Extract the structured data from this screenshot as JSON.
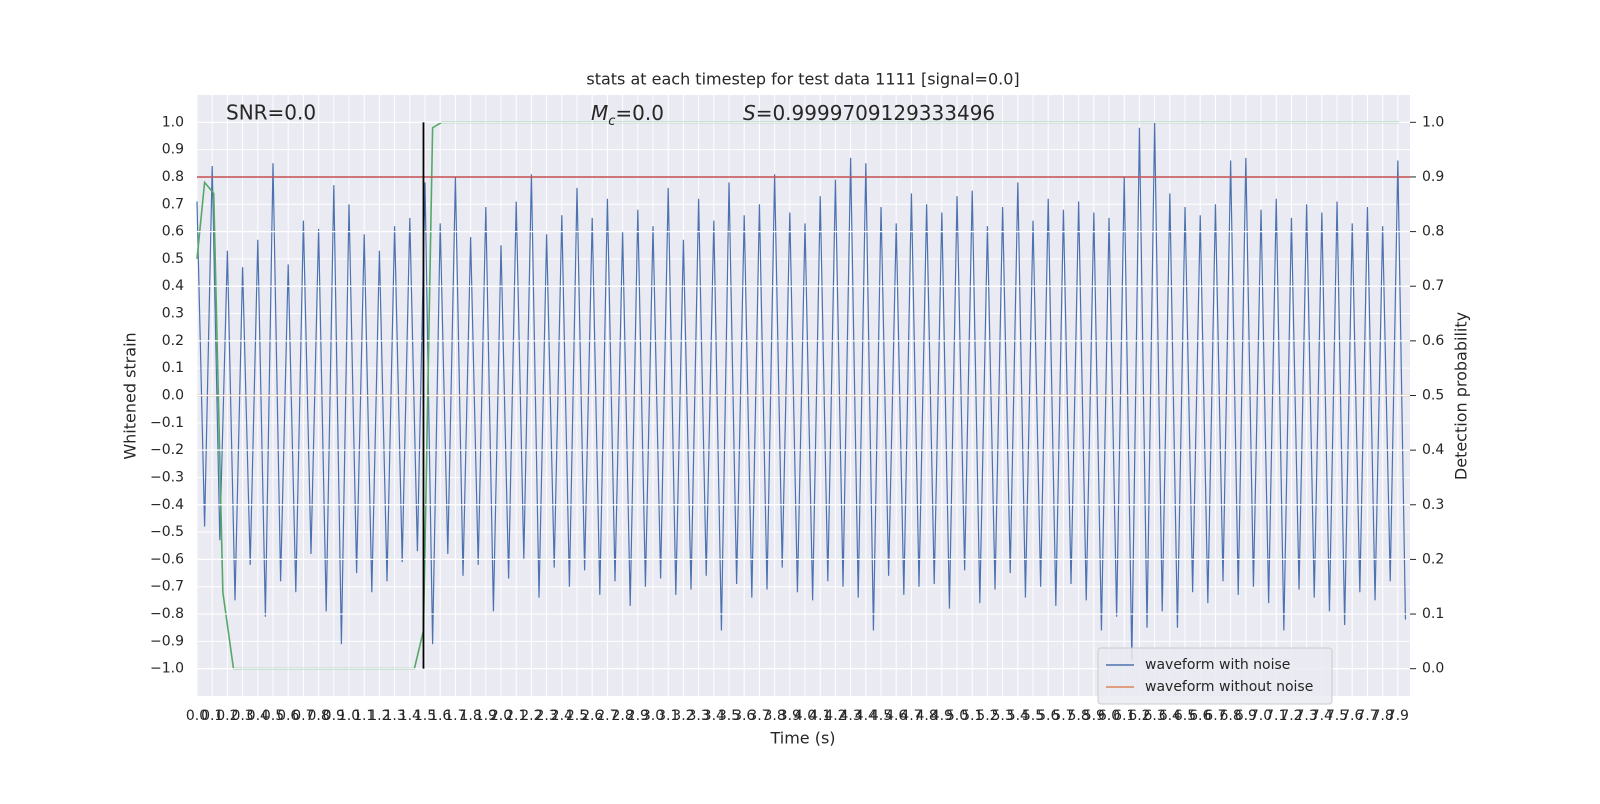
{
  "chart_data": {
    "type": "line",
    "title": "stats at each timestep for test data 1111 [signal=0.0]",
    "x_label": "Time (s)",
    "y_label": "Whitened strain",
    "y2_label": "Detection probability",
    "annotations": [
      {
        "text": "SNR=0.0"
      },
      {
        "symbol": "M",
        "subscript": "c",
        "text": "=0.0"
      },
      {
        "symbol": "S",
        "text": "=0.9999709129333496"
      }
    ],
    "xlim": [
      0,
      7.98
    ],
    "ylim": [
      -1.1,
      1.1
    ],
    "y2lim": [
      -0.05,
      1.05
    ],
    "grid": true,
    "legend": "lower right",
    "xticks": [
      {
        "value": 0,
        "label": "0.0"
      },
      0.1,
      0.2,
      0.3,
      0.4,
      0.5,
      0.6,
      0.7,
      0.8,
      0.9,
      {
        "value": 1,
        "label": "1.0"
      },
      1.1,
      1.2,
      1.3,
      1.4,
      1.5,
      1.6,
      1.7,
      1.8,
      1.9,
      {
        "value": 2,
        "label": "2.0"
      },
      2.1,
      2.2,
      2.3,
      2.4,
      2.5,
      2.6,
      2.7,
      2.8,
      2.9,
      {
        "value": 3,
        "label": "3.0"
      },
      3.1,
      3.2,
      3.3,
      3.4,
      3.5,
      3.6,
      3.7,
      3.8,
      3.9,
      {
        "value": 4,
        "label": "4.0"
      },
      4.1,
      4.2,
      4.3,
      4.4,
      4.5,
      4.6,
      4.7,
      4.8,
      4.9,
      {
        "value": 5,
        "label": "5.0"
      },
      5.1,
      5.2,
      5.3,
      5.4,
      5.5,
      5.6,
      5.7,
      5.8,
      5.9,
      {
        "value": 6,
        "label": "6.0"
      },
      6.1,
      6.2,
      6.3,
      6.4,
      6.5,
      6.6,
      6.7,
      6.8,
      6.9,
      {
        "value": 7,
        "label": "7.0"
      },
      7.1,
      7.2,
      7.3,
      7.4,
      7.5,
      7.6,
      7.7,
      7.8,
      7.9
    ],
    "yticks": [
      {
        "value": -1,
        "label": "−1.0"
      },
      {
        "value": -0.9,
        "label": "−0.9"
      },
      {
        "value": -0.8,
        "label": "−0.8"
      },
      {
        "value": -0.7,
        "label": "−0.7"
      },
      {
        "value": -0.6,
        "label": "−0.6"
      },
      {
        "value": -0.5,
        "label": "−0.5"
      },
      {
        "value": -0.4,
        "label": "−0.4"
      },
      {
        "value": -0.3,
        "label": "−0.3"
      },
      {
        "value": -0.2,
        "label": "−0.2"
      },
      {
        "value": -0.1,
        "label": "−0.1"
      },
      {
        "value": 0,
        "label": "0.0"
      },
      0.1,
      0.2,
      0.3,
      0.4,
      0.5,
      0.6,
      0.7,
      0.8,
      0.9,
      {
        "value": 1,
        "label": "1.0"
      }
    ],
    "y2ticks": [
      {
        "value": 0,
        "label": "0.0"
      },
      0.1,
      0.2,
      0.3,
      0.4,
      0.5,
      0.6,
      0.7,
      0.8,
      0.9,
      {
        "value": 1,
        "label": "1.0"
      }
    ],
    "threshold": {
      "value": 0.8,
      "color": "#c44e52"
    },
    "marker_line": {
      "x": 1.49,
      "ymin": -1.0,
      "ymax": 1.0,
      "color": "#000000"
    },
    "series": [
      {
        "name": "waveform with noise",
        "color": "#4c72b0",
        "x": [
          0,
          0.05,
          0.1,
          0.15,
          0.2,
          0.25,
          0.3,
          0.35,
          0.4,
          0.45,
          0.5,
          0.55,
          0.6,
          0.65,
          0.7,
          0.75,
          0.8,
          0.85,
          0.9,
          0.95,
          1,
          1.05,
          1.1,
          1.15,
          1.2,
          1.25,
          1.3,
          1.35,
          1.4,
          1.45,
          1.5,
          1.55,
          1.6,
          1.65,
          1.7,
          1.75,
          1.8,
          1.85,
          1.9,
          1.95,
          2,
          2.05,
          2.1,
          2.15,
          2.2,
          2.25,
          2.3,
          2.35,
          2.4,
          2.45,
          2.5,
          2.55,
          2.6,
          2.65,
          2.7,
          2.75,
          2.8,
          2.85,
          2.9,
          2.95,
          3,
          3.05,
          3.1,
          3.15,
          3.2,
          3.25,
          3.3,
          3.35,
          3.4,
          3.45,
          3.5,
          3.55,
          3.6,
          3.65,
          3.7,
          3.75,
          3.8,
          3.85,
          3.9,
          3.95,
          4,
          4.05,
          4.1,
          4.15,
          4.2,
          4.25,
          4.3,
          4.35,
          4.4,
          4.45,
          4.5,
          4.55,
          4.6,
          4.65,
          4.7,
          4.75,
          4.8,
          4.85,
          4.9,
          4.95,
          5,
          5.05,
          5.1,
          5.15,
          5.2,
          5.25,
          5.3,
          5.35,
          5.4,
          5.45,
          5.5,
          5.55,
          5.6,
          5.65,
          5.7,
          5.75,
          5.8,
          5.85,
          5.9,
          5.95,
          6,
          6.05,
          6.1,
          6.15,
          6.2,
          6.25,
          6.3,
          6.35,
          6.4,
          6.45,
          6.5,
          6.55,
          6.6,
          6.65,
          6.7,
          6.75,
          6.8,
          6.85,
          6.9,
          6.95,
          7,
          7.05,
          7.1,
          7.15,
          7.2,
          7.25,
          7.3,
          7.35,
          7.4,
          7.45,
          7.5,
          7.55,
          7.6,
          7.65,
          7.7,
          7.75,
          7.8,
          7.85,
          7.9,
          7.95
        ],
        "values": [
          0.71,
          -0.48,
          0.84,
          -0.53,
          0.53,
          -0.75,
          0.47,
          -0.62,
          0.57,
          -0.81,
          0.85,
          -0.68,
          0.48,
          -0.72,
          0.64,
          -0.58,
          0.61,
          -0.79,
          0.77,
          -0.91,
          0.7,
          -0.65,
          0.59,
          -0.72,
          0.53,
          -0.68,
          0.62,
          -0.61,
          0.65,
          -0.57,
          0.78,
          -0.91,
          0.63,
          -0.58,
          0.8,
          -0.66,
          0.58,
          -0.62,
          0.69,
          -0.79,
          0.55,
          -0.67,
          0.71,
          -0.6,
          0.81,
          -0.74,
          0.59,
          -0.63,
          0.66,
          -0.7,
          0.76,
          -0.64,
          0.65,
          -0.73,
          0.72,
          -0.68,
          0.6,
          -0.77,
          0.68,
          -0.7,
          0.62,
          -0.67,
          0.76,
          -0.73,
          0.57,
          -0.71,
          0.72,
          -0.66,
          0.64,
          -0.86,
          0.78,
          -0.69,
          0.66,
          -0.74,
          0.7,
          -0.71,
          0.81,
          -0.63,
          0.67,
          -0.72,
          0.63,
          -0.75,
          0.73,
          -0.68,
          0.79,
          -0.7,
          0.87,
          -0.74,
          0.85,
          -0.86,
          0.69,
          -0.66,
          0.63,
          -0.73,
          0.74,
          -0.7,
          0.7,
          -0.69,
          0.67,
          -0.78,
          0.73,
          -0.64,
          0.75,
          -0.76,
          0.62,
          -0.71,
          0.69,
          -0.65,
          0.78,
          -0.74,
          0.64,
          -0.7,
          0.72,
          -0.77,
          0.68,
          -0.69,
          0.71,
          -0.75,
          0.67,
          -0.86,
          0.65,
          -0.81,
          0.8,
          -0.97,
          0.98,
          -0.85,
          1.0,
          -0.79,
          0.74,
          -0.85,
          0.69,
          -0.72,
          0.66,
          -0.76,
          0.7,
          -0.68,
          0.86,
          -0.73,
          0.87,
          -0.7,
          0.68,
          -0.76,
          0.72,
          -0.86,
          0.65,
          -0.71,
          0.7,
          -0.74,
          0.67,
          -0.79,
          0.71,
          -0.84,
          0.63,
          -0.72,
          0.69,
          -0.75,
          0.62,
          -0.68,
          0.86,
          -0.82
        ]
      },
      {
        "name": "waveform without noise",
        "color": "#dd8452",
        "x": [
          0,
          7.98
        ],
        "values": [
          0,
          0
        ]
      },
      {
        "color": "#55a868",
        "axis": "y2",
        "x": [
          0,
          0.05,
          0.11,
          0.17,
          0.24,
          1.43,
          1.49,
          1.55,
          1.61,
          7.91
        ],
        "values": [
          0.75,
          0.89,
          0.87,
          0.14,
          0,
          0,
          0.07,
          0.99,
          1,
          1
        ]
      }
    ]
  }
}
